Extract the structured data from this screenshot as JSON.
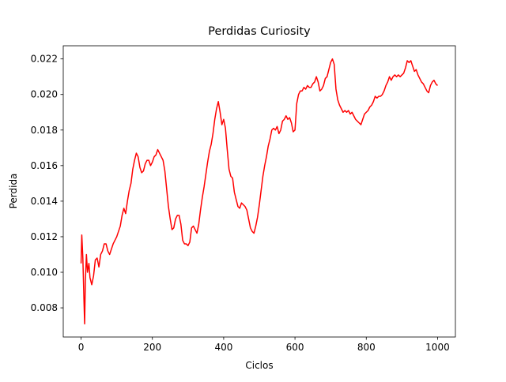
{
  "chart_data": {
    "type": "line",
    "title": "Perdidas Curiosity",
    "x_label": "Ciclos",
    "y_label": "Perdida",
    "xlim": [
      -50,
      1050
    ],
    "ylim": [
      0.00636,
      0.02274
    ],
    "xticks": [
      0,
      200,
      400,
      600,
      800,
      1000
    ],
    "yticks": [
      0.008,
      {
        "value": 0.01,
        "label": "0.010"
      },
      0.012,
      0.014,
      0.016,
      0.018,
      {
        "value": 0.02,
        "label": "0.020"
      },
      0.022
    ],
    "grid": false,
    "series": [
      {
        "name": "Perdida",
        "color": "#ff0000",
        "x": [
          0,
          2,
          5,
          8,
          10,
          12,
          15,
          18,
          22,
          25,
          30,
          35,
          40,
          45,
          50,
          55,
          60,
          65,
          70,
          75,
          80,
          85,
          90,
          100,
          110,
          115,
          120,
          125,
          130,
          135,
          140,
          145,
          150,
          155,
          160,
          165,
          170,
          175,
          180,
          185,
          190,
          195,
          200,
          205,
          210,
          215,
          220,
          225,
          230,
          235,
          240,
          245,
          250,
          255,
          260,
          265,
          270,
          275,
          280,
          285,
          290,
          295,
          300,
          305,
          310,
          315,
          320,
          325,
          330,
          335,
          340,
          345,
          350,
          355,
          360,
          365,
          370,
          375,
          380,
          385,
          390,
          395,
          400,
          405,
          410,
          415,
          420,
          425,
          430,
          435,
          440,
          445,
          450,
          455,
          460,
          465,
          470,
          475,
          480,
          485,
          490,
          495,
          500,
          505,
          510,
          515,
          520,
          525,
          530,
          535,
          540,
          545,
          550,
          555,
          560,
          565,
          570,
          575,
          580,
          585,
          590,
          595,
          600,
          605,
          610,
          615,
          620,
          625,
          630,
          635,
          640,
          645,
          650,
          655,
          660,
          665,
          670,
          675,
          680,
          685,
          690,
          695,
          700,
          705,
          710,
          715,
          720,
          725,
          730,
          735,
          740,
          745,
          750,
          755,
          760,
          765,
          770,
          775,
          780,
          785,
          790,
          795,
          800,
          805,
          810,
          815,
          820,
          825,
          830,
          835,
          840,
          845,
          850,
          855,
          860,
          865,
          870,
          875,
          880,
          885,
          890,
          895,
          900,
          905,
          910,
          915,
          920,
          925,
          930,
          935,
          940,
          945,
          950,
          955,
          960,
          965,
          970,
          975,
          980,
          985,
          990,
          995,
          1000
        ],
        "values": [
          0.0105,
          0.0121,
          0.0108,
          0.0085,
          0.0071,
          0.0095,
          0.011,
          0.01,
          0.0105,
          0.0097,
          0.0093,
          0.0098,
          0.0107,
          0.0108,
          0.0103,
          0.011,
          0.0112,
          0.0116,
          0.0116,
          0.0112,
          0.011,
          0.0113,
          0.0116,
          0.012,
          0.0126,
          0.0132,
          0.0136,
          0.0133,
          0.014,
          0.0146,
          0.015,
          0.0158,
          0.0163,
          0.0167,
          0.0165,
          0.0159,
          0.0156,
          0.0157,
          0.0161,
          0.0163,
          0.0163,
          0.016,
          0.0162,
          0.0165,
          0.0166,
          0.0169,
          0.0167,
          0.0165,
          0.0163,
          0.0157,
          0.0147,
          0.0137,
          0.013,
          0.0124,
          0.0125,
          0.013,
          0.0132,
          0.0132,
          0.0127,
          0.0118,
          0.0116,
          0.0116,
          0.0115,
          0.0117,
          0.0125,
          0.0126,
          0.0124,
          0.0122,
          0.0127,
          0.0135,
          0.0142,
          0.0148,
          0.0155,
          0.0162,
          0.0168,
          0.0172,
          0.0178,
          0.0186,
          0.0192,
          0.0196,
          0.019,
          0.0183,
          0.0186,
          0.0181,
          0.0169,
          0.0158,
          0.0154,
          0.0153,
          0.0145,
          0.0141,
          0.0137,
          0.0136,
          0.0139,
          0.0138,
          0.0137,
          0.0135,
          0.013,
          0.0125,
          0.0123,
          0.0122,
          0.0126,
          0.0131,
          0.0138,
          0.0146,
          0.0154,
          0.016,
          0.0165,
          0.0171,
          0.0175,
          0.018,
          0.0181,
          0.018,
          0.0182,
          0.0178,
          0.018,
          0.0185,
          0.0186,
          0.0188,
          0.0186,
          0.0187,
          0.0184,
          0.0179,
          0.018,
          0.0195,
          0.02,
          0.0202,
          0.0202,
          0.0204,
          0.0203,
          0.0205,
          0.0204,
          0.0204,
          0.0206,
          0.0207,
          0.021,
          0.0207,
          0.0202,
          0.0203,
          0.0205,
          0.0209,
          0.021,
          0.0214,
          0.0218,
          0.022,
          0.0217,
          0.0203,
          0.0197,
          0.0194,
          0.0192,
          0.019,
          0.0191,
          0.019,
          0.0191,
          0.0189,
          0.019,
          0.0188,
          0.0186,
          0.0185,
          0.0184,
          0.0183,
          0.0186,
          0.0189,
          0.019,
          0.0191,
          0.0193,
          0.0194,
          0.0196,
          0.0199,
          0.0198,
          0.0199,
          0.0199,
          0.02,
          0.0202,
          0.0205,
          0.0207,
          0.021,
          0.0208,
          0.021,
          0.0211,
          0.021,
          0.0211,
          0.021,
          0.0211,
          0.0212,
          0.0215,
          0.0219,
          0.0218,
          0.0219,
          0.0216,
          0.0213,
          0.0214,
          0.0211,
          0.0209,
          0.0207,
          0.0206,
          0.0204,
          0.0202,
          0.0201,
          0.0205,
          0.0207,
          0.0208,
          0.0206,
          0.0205
        ]
      }
    ]
  }
}
